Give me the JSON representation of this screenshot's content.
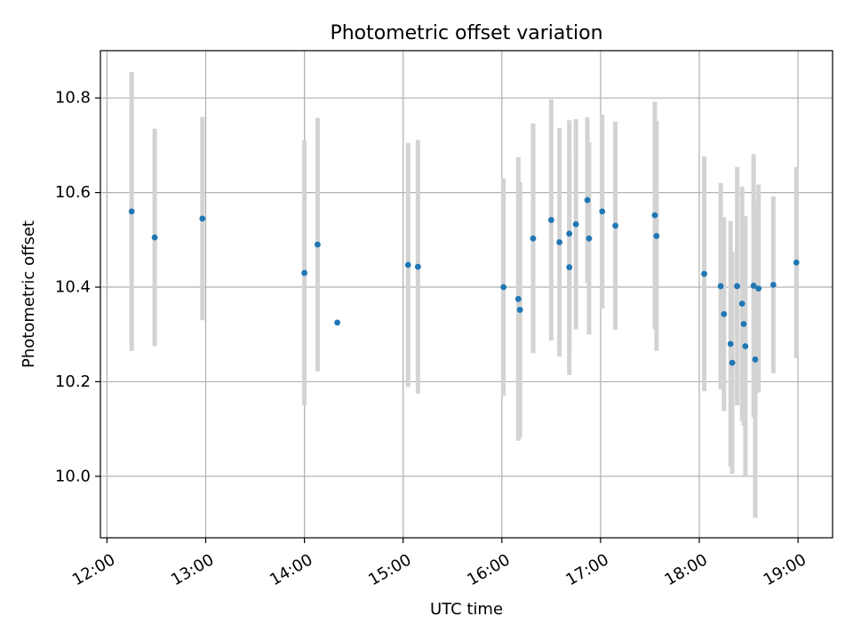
{
  "chart_data": {
    "type": "scatter",
    "title": "Photometric offset variation",
    "xlabel": "UTC time",
    "ylabel": "Photometric offset",
    "grid": true,
    "x_axis_kind": "time",
    "xlim": [
      "11:56",
      "19:21"
    ],
    "ylim": [
      9.87,
      10.9
    ],
    "x_ticks": [
      "12:00",
      "13:00",
      "14:00",
      "15:00",
      "16:00",
      "17:00",
      "18:00",
      "19:00"
    ],
    "y_ticks": [
      "10.0",
      "10.2",
      "10.4",
      "10.6",
      "10.8"
    ],
    "colors": {
      "points": "#1f77b4",
      "errorbars": "#d3d3d3",
      "grid": "#b0b0b0"
    },
    "series": [
      {
        "points": [
          {
            "x": "12:15",
            "y": 10.56,
            "err": 0.295
          },
          {
            "x": "12:29",
            "y": 10.505,
            "err": 0.23
          },
          {
            "x": "12:58",
            "y": 10.545,
            "err": 0.215
          },
          {
            "x": "14:00",
            "y": 10.43,
            "err": 0.28
          },
          {
            "x": "14:08",
            "y": 10.49,
            "err": 0.268
          },
          {
            "x": "14:20",
            "y": 10.325,
            "err": 0.0
          },
          {
            "x": "15:03",
            "y": 10.447,
            "err": 0.258
          },
          {
            "x": "15:09",
            "y": 10.443,
            "err": 0.268
          },
          {
            "x": "16:01",
            "y": 10.4,
            "err": 0.23
          },
          {
            "x": "16:10",
            "y": 10.375,
            "err": 0.3
          },
          {
            "x": "16:11",
            "y": 10.352,
            "err": 0.27
          },
          {
            "x": "16:19",
            "y": 10.503,
            "err": 0.243
          },
          {
            "x": "16:30",
            "y": 10.542,
            "err": 0.255
          },
          {
            "x": "16:35",
            "y": 10.495,
            "err": 0.242
          },
          {
            "x": "16:41",
            "y": 10.442,
            "err": 0.228
          },
          {
            "x": "16:41",
            "y": 10.513,
            "err": 0.24
          },
          {
            "x": "16:45",
            "y": 10.533,
            "err": 0.222
          },
          {
            "x": "16:52",
            "y": 10.584,
            "err": 0.175
          },
          {
            "x": "16:53",
            "y": 10.503,
            "err": 0.203
          },
          {
            "x": "17:01",
            "y": 10.56,
            "err": 0.205
          },
          {
            "x": "17:09",
            "y": 10.53,
            "err": 0.22
          },
          {
            "x": "17:33",
            "y": 10.552,
            "err": 0.24
          },
          {
            "x": "17:34",
            "y": 10.508,
            "err": 0.243
          },
          {
            "x": "18:03",
            "y": 10.428,
            "err": 0.248
          },
          {
            "x": "18:13",
            "y": 10.402,
            "err": 0.218
          },
          {
            "x": "18:15",
            "y": 10.343,
            "err": 0.205
          },
          {
            "x": "18:19",
            "y": 10.28,
            "err": 0.26
          },
          {
            "x": "18:20",
            "y": 10.24,
            "err": 0.235
          },
          {
            "x": "18:23",
            "y": 10.402,
            "err": 0.252
          },
          {
            "x": "18:26",
            "y": 10.365,
            "err": 0.248
          },
          {
            "x": "18:27",
            "y": 10.322,
            "err": 0.215
          },
          {
            "x": "18:28",
            "y": 10.275,
            "err": 0.275
          },
          {
            "x": "18:33",
            "y": 10.403,
            "err": 0.278
          },
          {
            "x": "18:34",
            "y": 10.247,
            "err": 0.335
          },
          {
            "x": "18:36",
            "y": 10.397,
            "err": 0.22
          },
          {
            "x": "18:45",
            "y": 10.405,
            "err": 0.187
          },
          {
            "x": "18:59",
            "y": 10.452,
            "err": 0.202
          }
        ]
      }
    ]
  }
}
